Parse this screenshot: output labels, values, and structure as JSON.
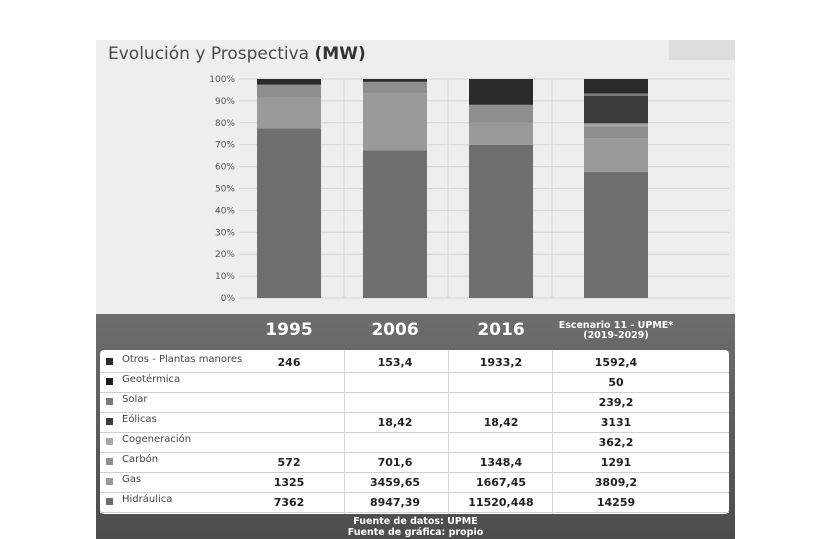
{
  "title_prefix": "Evolución y Prospectiva ",
  "title_unit": "(MW)",
  "footer": {
    "line1": "Fuente de datos: UPME",
    "line2": "Fuente de gráfica: propio"
  },
  "colors": {
    "Otros - Plantas manores": "#2b2b2b",
    "Geotérmica": "#1e1e1e",
    "Solar": "#7a7a7a",
    "Eólicas": "#3c3c3c",
    "Cogeneración": "#a8a8a8",
    "Carbón": "#8e8e8e",
    "Gas": "#9a9a9a",
    "Hidráulica": "#6e6e6e"
  },
  "chart_data": {
    "type": "bar",
    "stacked": true,
    "normalized": true,
    "categories": [
      "1995",
      "2006",
      "2016",
      "Escenario 11 - UPME* (2019-2029)"
    ],
    "yticks": [
      "100%",
      "90%",
      "80%",
      "70%",
      "60%",
      "50%",
      "40%",
      "30%",
      "20%",
      "10%",
      "0%"
    ],
    "ylim": [
      0,
      100
    ],
    "series": [
      {
        "name": "Hidráulica",
        "values": [
          "7362",
          "8947,39",
          "11520,448",
          "14259"
        ]
      },
      {
        "name": "Gas",
        "values": [
          "1325",
          "3459,65",
          "1667,45",
          "3809,2"
        ]
      },
      {
        "name": "Carbón",
        "values": [
          "572",
          "701,6",
          "1348,4",
          "1291"
        ]
      },
      {
        "name": "Cogeneración",
        "values": [
          "",
          "",
          "",
          "362,2"
        ]
      },
      {
        "name": "Eólicas",
        "values": [
          "",
          "18,42",
          "18,42",
          "3131"
        ]
      },
      {
        "name": "Solar",
        "values": [
          "",
          "",
          "",
          "239,2"
        ]
      },
      {
        "name": "Geotérmica",
        "values": [
          "",
          "",
          "",
          "50"
        ]
      },
      {
        "name": "Otros - Plantas manores",
        "values": [
          "246",
          "153,4",
          "1933,2",
          "1592,4"
        ]
      }
    ]
  }
}
